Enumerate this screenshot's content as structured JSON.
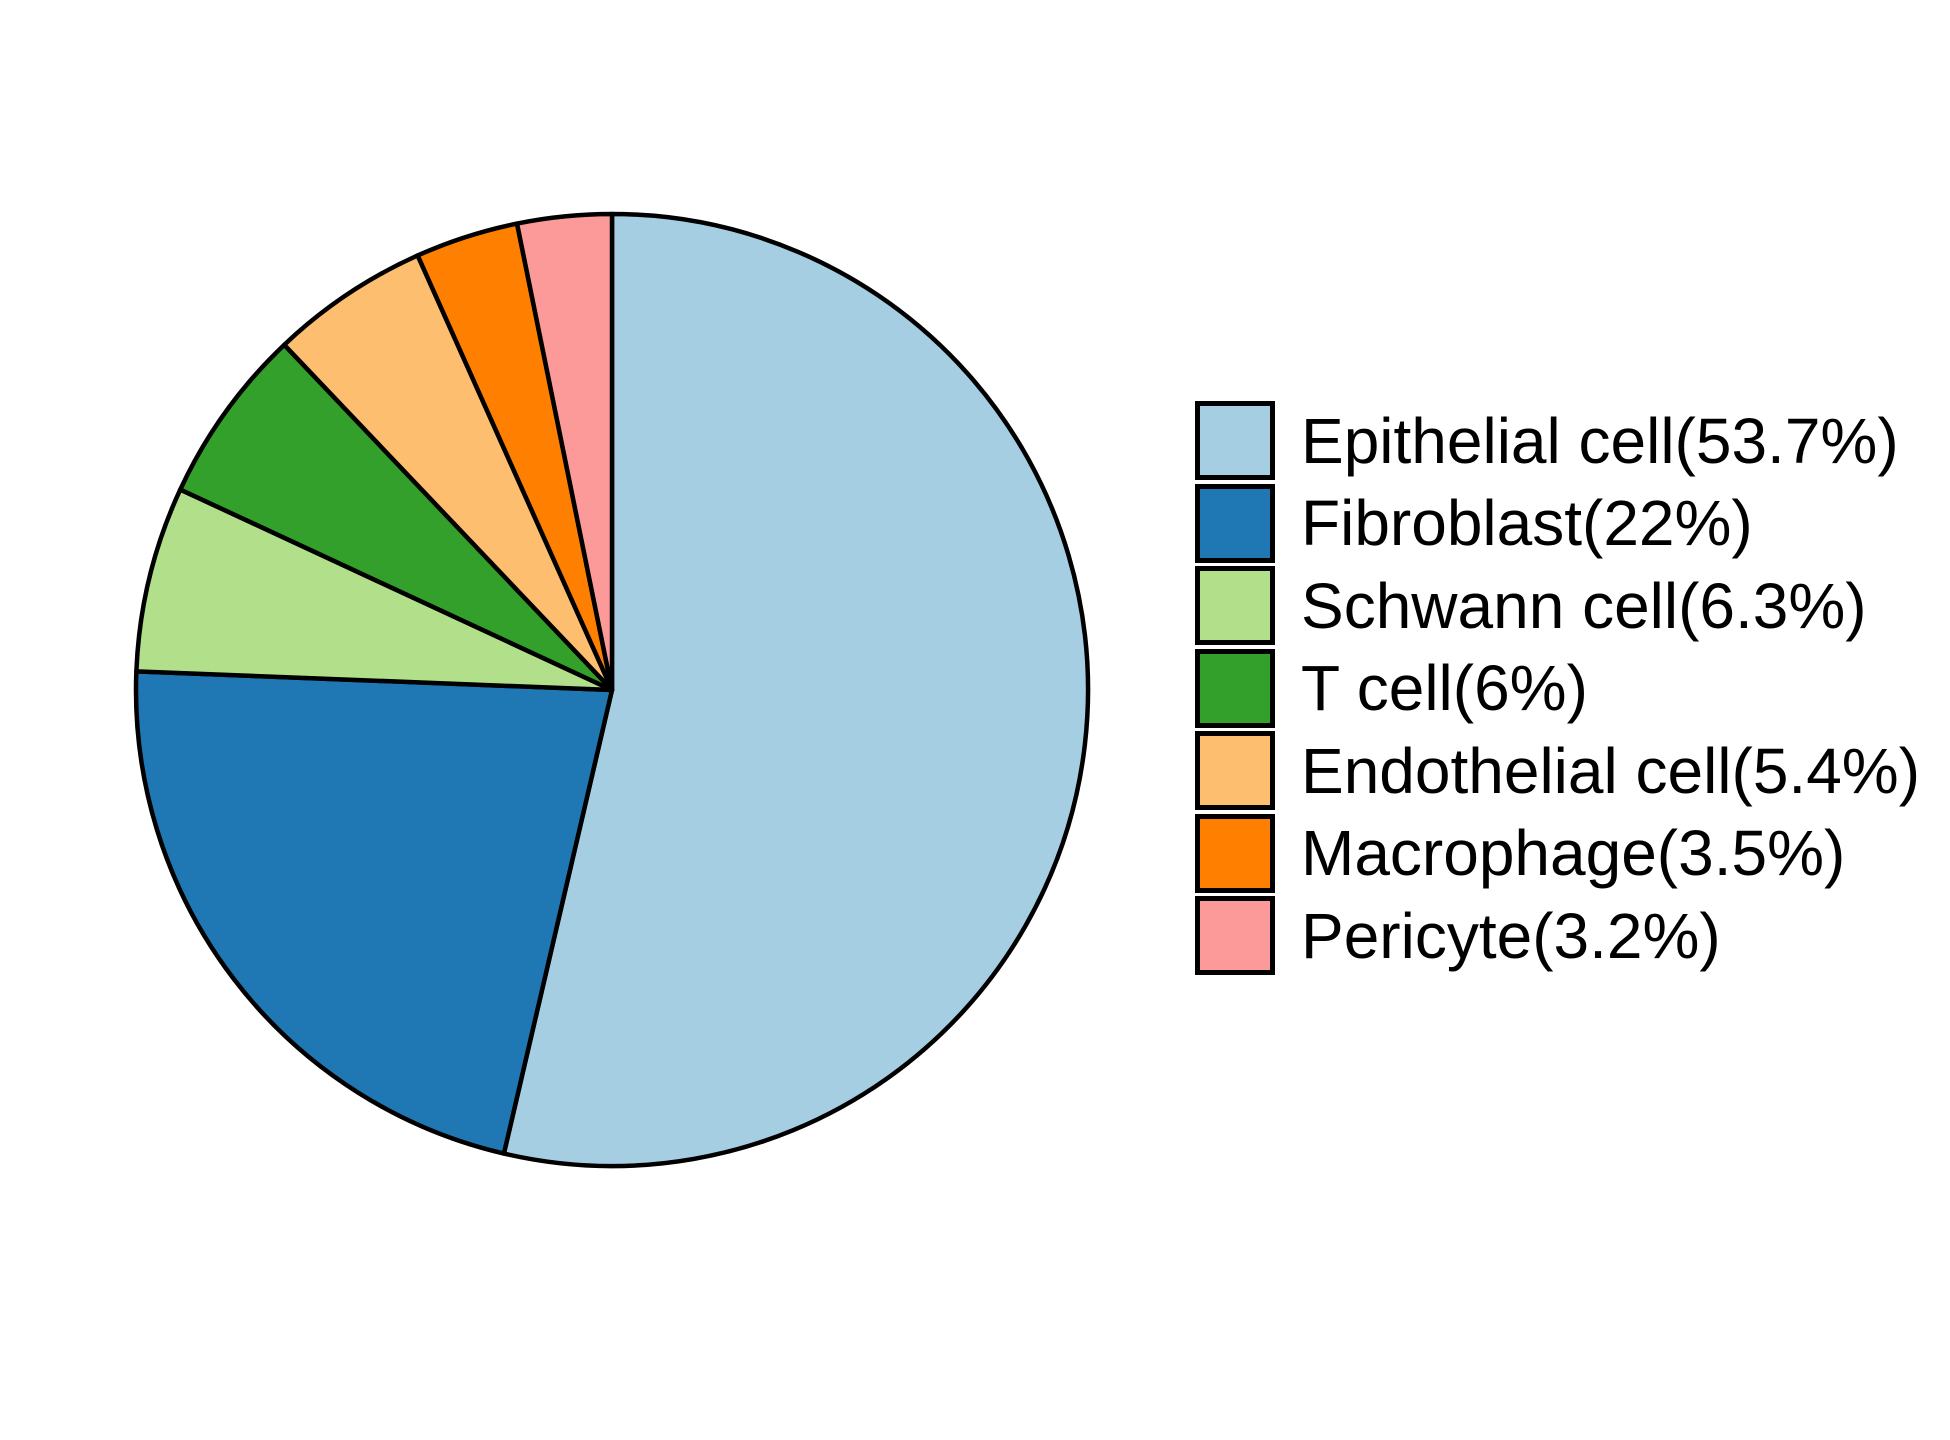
{
  "figure": {
    "background": "#FFFFFF"
  },
  "chart_data": {
    "type": "pie",
    "title": "",
    "categories": [
      "Epithelial cell",
      "Fibroblast",
      "Schwann cell",
      "T cell",
      "Endothelial cell",
      "Macrophage",
      "Pericyte"
    ],
    "values": [
      53.7,
      22,
      6.3,
      6,
      5.4,
      3.5,
      3.2
    ],
    "unit": "%",
    "start_angle": "12-oclock",
    "direction": "clockwise",
    "legend_position": "right",
    "outline_color": "#000000",
    "slices": [
      {
        "label": "Epithelial cell",
        "value": 53.7,
        "color": "#A6CEE3",
        "legend_label": "Epithelial cell(53.7%)"
      },
      {
        "label": "Fibroblast",
        "value": 22,
        "color": "#1F78B4",
        "legend_label": "Fibroblast(22%)"
      },
      {
        "label": "Schwann cell",
        "value": 6.3,
        "color": "#B2DF8A",
        "legend_label": "Schwann cell(6.3%)"
      },
      {
        "label": "T cell",
        "value": 6,
        "color": "#33A02C",
        "legend_label": "T cell(6%)"
      },
      {
        "label": "Endothelial cell",
        "value": 5.4,
        "color": "#FDBF6F",
        "legend_label": "Endothelial cell(5.4%)"
      },
      {
        "label": "Macrophage",
        "value": 3.5,
        "color": "#FF7F00",
        "legend_label": "Macrophage(3.5%)"
      },
      {
        "label": "Pericyte",
        "value": 3.2,
        "color": "#FB9A99",
        "legend_label": "Pericyte(3.2%)"
      }
    ]
  }
}
